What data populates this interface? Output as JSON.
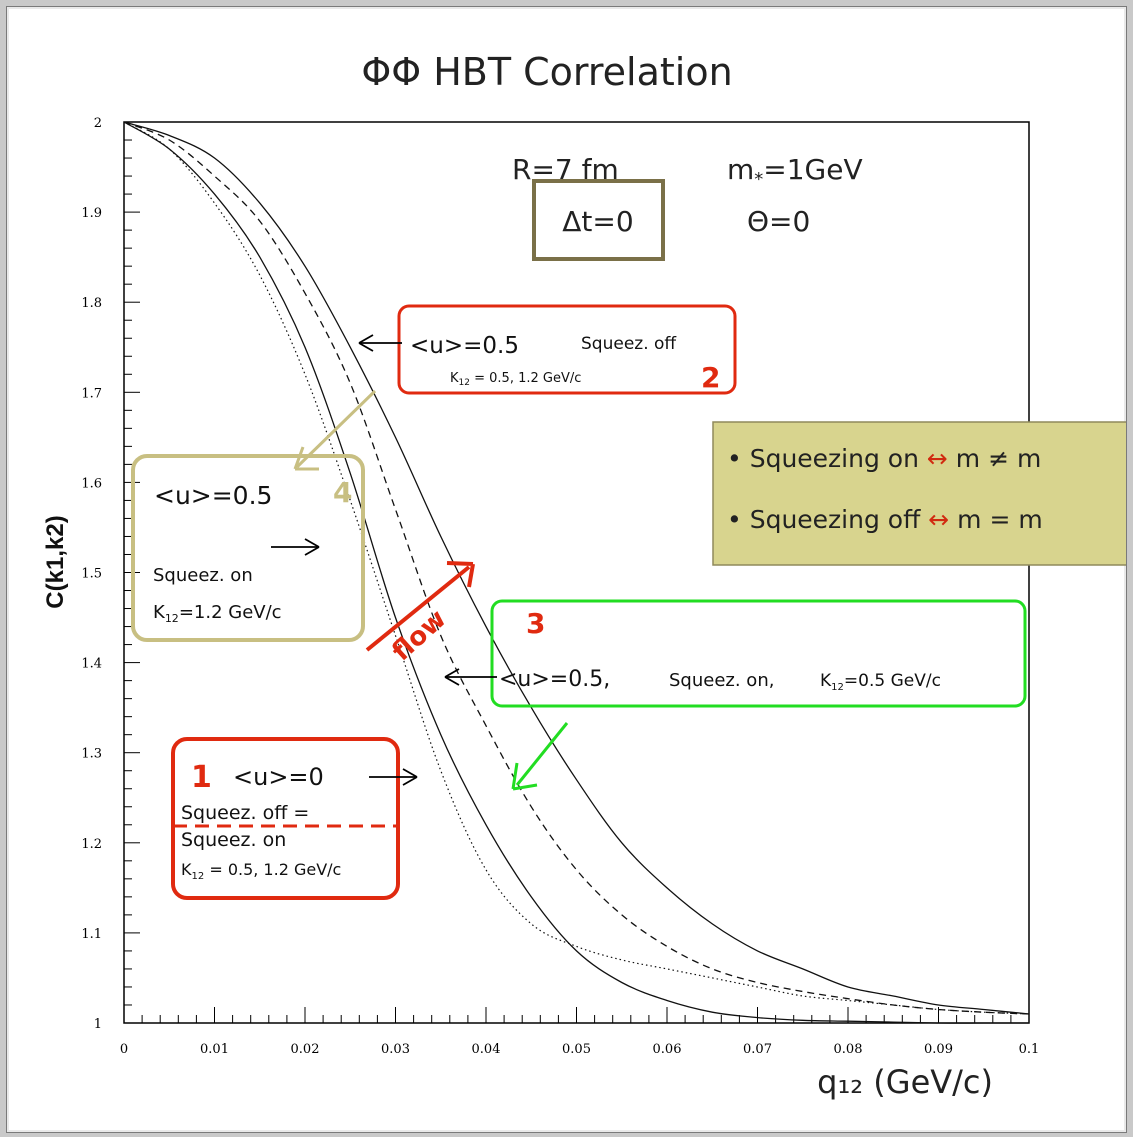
{
  "chart_data": {
    "type": "line",
    "title": "ΦΦ HBT Correlation",
    "xlabel": "q₁₂ (GeV/c)",
    "ylabel": "C(k1,k2)",
    "xlim": [
      0,
      0.1
    ],
    "ylim": [
      1,
      2
    ],
    "x_ticks": [
      "0",
      "0.01",
      "0.02",
      "0.03",
      "0.04",
      "0.05",
      "0.06",
      "0.07",
      "0.08",
      "0.09",
      "0.1"
    ],
    "y_ticks": [
      "1",
      "1.1",
      "1.2",
      "1.3",
      "1.4",
      "1.5",
      "1.6",
      "1.7",
      "1.8",
      "1.9",
      "2"
    ],
    "grid": false,
    "x": [
      0,
      0.005,
      0.01,
      0.015,
      0.02,
      0.025,
      0.03,
      0.035,
      0.04,
      0.045,
      0.05,
      0.055,
      0.06,
      0.065,
      0.07,
      0.075,
      0.08,
      0.085,
      0.09,
      0.095,
      0.1
    ],
    "series": [
      {
        "style": "solid",
        "values": [
          2.0,
          1.97,
          1.92,
          1.85,
          1.75,
          1.61,
          1.45,
          1.32,
          1.22,
          1.14,
          1.08,
          1.045,
          1.025,
          1.012,
          1.006,
          1.003,
          1.002,
          1.001,
          1.0,
          1.0,
          1.0
        ]
      },
      {
        "style": "dotted",
        "values": [
          2.0,
          1.97,
          1.91,
          1.83,
          1.72,
          1.58,
          1.43,
          1.28,
          1.17,
          1.11,
          1.085,
          1.07,
          1.06,
          1.05,
          1.04,
          1.03,
          1.025,
          1.02,
          1.015,
          1.012,
          1.01
        ]
      },
      {
        "style": "dashed",
        "values": [
          2.0,
          1.98,
          1.94,
          1.89,
          1.81,
          1.71,
          1.57,
          1.43,
          1.33,
          1.24,
          1.17,
          1.12,
          1.085,
          1.06,
          1.045,
          1.035,
          1.027,
          1.02,
          1.015,
          1.012,
          1.01
        ]
      },
      {
        "style": "solid",
        "values": [
          2.0,
          1.985,
          1.96,
          1.91,
          1.84,
          1.75,
          1.65,
          1.54,
          1.44,
          1.35,
          1.27,
          1.2,
          1.15,
          1.11,
          1.08,
          1.06,
          1.04,
          1.03,
          1.02,
          1.015,
          1.01
        ]
      }
    ],
    "annotations": {
      "params": {
        "R": "R=7 fm",
        "m": "m",
        "m_sub": "*",
        "m_value": "=1GeV",
        "dt": "Δt=0",
        "theta": "Θ=0"
      },
      "box1": {
        "num": "1",
        "u": "<u>=0",
        "l1": "Squeez. off =",
        "l2": "Squeez. on",
        "k": "K",
        "k_sub": "12",
        "k_rest": " = 0.5, 1.2 GeV/c"
      },
      "box2": {
        "num": "2",
        "u": "<u>=0.5",
        "sq": "Squeez. off",
        "k": "K",
        "k_sub": "12",
        "k_rest": " = 0.5, 1.2 GeV/c"
      },
      "box3": {
        "num": "3",
        "u": "<u>=0.5,",
        "sq": "Squeez. on,",
        "k": "K",
        "k_sub": "12",
        "k_rest": "=0.5 GeV/c"
      },
      "box4": {
        "num": "4",
        "u": "<u>=0.5",
        "sq": "Squeez. on",
        "k": "K",
        "k_sub": "12",
        "k_rest": "=1.2 GeV/c"
      },
      "flow": "flow",
      "legend_lines": [
        {
          "bullet": "•",
          "text": "Squeezing on",
          "arrow": "↔",
          "rel": "m ≠ m"
        },
        {
          "bullet": "•",
          "text": "Squeezing off",
          "arrow": "↔",
          "rel": "m = m"
        }
      ]
    },
    "colors": {
      "red_box": "#e02a10",
      "olive_box": "#c8bf82",
      "dark_olive": "#7a7048",
      "green_box": "#22dd22",
      "legend_bg": "#d8d48e"
    }
  }
}
